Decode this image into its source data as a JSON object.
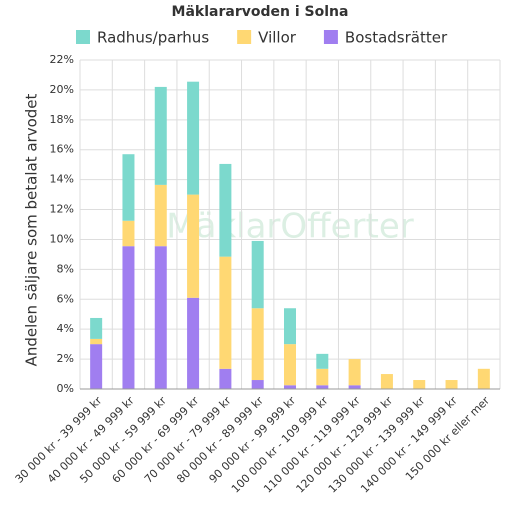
{
  "chart_data": {
    "type": "stacked_bar",
    "title": "Mäklararvoden i Solna",
    "watermark": "MäklarOfferter",
    "y_label": "Andelen säljare som betalat arvodet",
    "categories": [
      "30 000 kr - 39 999 kr",
      "40 000 kr - 49 999 kr",
      "50 000 kr - 59 999 kr",
      "60 000 kr - 69 999 kr",
      "70 000 kr - 79 999 kr",
      "80 000 kr - 89 999 kr",
      "90 000 kr - 99 999 kr",
      "100 000 kr - 109 999 kr",
      "110 000 kr - 119 999 kr",
      "120 000 kr - 129 999 kr",
      "130 000 kr - 139 999 kr",
      "140 000 kr - 149 999 kr",
      "150 000 kr eller mer"
    ],
    "series": [
      {
        "name": "Radhus/parhus",
        "color": "#7cd9cd",
        "values": [
          1.4,
          4.45,
          6.55,
          7.55,
          6.2,
          4.5,
          2.4,
          1.0,
          0,
          0,
          0,
          0,
          0
        ]
      },
      {
        "name": "Villor",
        "color": "#ffd873",
        "values": [
          0.35,
          1.7,
          4.1,
          6.9,
          7.5,
          4.8,
          2.75,
          1.1,
          1.75,
          1.0,
          0.6,
          0.6,
          1.35
        ]
      },
      {
        "name": "Bostadsrätter",
        "color": "#a07ef0",
        "values": [
          3.0,
          9.55,
          9.55,
          6.1,
          1.35,
          0.6,
          0.25,
          0.25,
          0.25,
          0,
          0,
          0,
          0
        ]
      }
    ],
    "ylim": [
      0,
      22
    ],
    "yticks": [
      {
        "value": 0,
        "label": "0%"
      },
      {
        "value": 2,
        "label": "2%"
      },
      {
        "value": 4,
        "label": "4%"
      },
      {
        "value": 6,
        "label": "6%"
      },
      {
        "value": 8,
        "label": "8%"
      },
      {
        "value": 10,
        "label": "10%"
      },
      {
        "value": 12,
        "label": "12%"
      },
      {
        "value": 14,
        "label": "14%"
      },
      {
        "value": 16,
        "label": "16%"
      },
      {
        "value": 18,
        "label": "18%"
      },
      {
        "value": 20,
        "label": "20%"
      },
      {
        "value": 22,
        "label": "22%"
      }
    ],
    "grid": true,
    "legend": "top"
  }
}
